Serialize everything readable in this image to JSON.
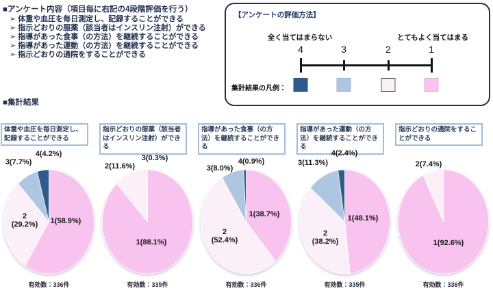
{
  "colors": {
    "slice_1_pink": "#F8C3EF",
    "slice_2_pale_pink": "#FCF0F8",
    "slice_3_light_blue": "#AEC6E2",
    "slice_4_dark_blue": "#2F5A8C",
    "legend_pale_outline": "#595959",
    "navy_text": "#1F3864"
  },
  "survey_content": {
    "heading": "■アンケート内容（項目毎に右記の4段階評価を行う）",
    "bullet": "➢",
    "items": [
      "体重や血圧を毎日測定し、記録することができる",
      "指示どおりの服薬（該当者はインスリン注射）ができる",
      "指導があった食事（の方法）を継続することができる",
      "指導があった運動（の方法）を継続することができる",
      "指示どおりの通院をすることができる"
    ]
  },
  "results_heading": "■集計結果",
  "evaluation_box": {
    "title": "【アンケートの評価方法】",
    "left_scale_label": "全く当てはまらない",
    "right_scale_label": "とてもよく当てはまる",
    "scale_numbers": [
      "4",
      "3",
      "2",
      "1"
    ],
    "legend_label": "集計結果の凡例：",
    "legend_keys": [
      "4",
      "3",
      "2",
      "1"
    ]
  },
  "chart_data": [
    {
      "type": "pie",
      "title": "体重や血圧を毎日測定し、記録することができる",
      "slices": [
        {
          "label": "1",
          "value": 58.9,
          "display": "1(58.9%)"
        },
        {
          "label": "2",
          "value": 29.2,
          "display": "2\n(29.2%)"
        },
        {
          "label": "3",
          "value": 7.7,
          "display": "3(7.7%)"
        },
        {
          "label": "4",
          "value": 4.2,
          "display": "4(4.2%)"
        }
      ],
      "valid_label": "有効数：336件"
    },
    {
      "type": "pie",
      "title": "指示どおりの服薬（該当者はインスリン注射）ができる",
      "slices": [
        {
          "label": "1",
          "value": 88.1,
          "display": "1(88.1%)"
        },
        {
          "label": "2",
          "value": 11.6,
          "display": "2(11.6%)"
        },
        {
          "label": "3",
          "value": 0.3,
          "display": "3(0.3%)"
        }
      ],
      "valid_label": "有効数：335件"
    },
    {
      "type": "pie",
      "title": "指導があった食事（の方法）を継続することができる",
      "slices": [
        {
          "label": "1",
          "value": 38.7,
          "display": "1(38.7%)"
        },
        {
          "label": "2",
          "value": 52.4,
          "display": "2\n(52.4%)"
        },
        {
          "label": "3",
          "value": 8.0,
          "display": "3(8.0%)"
        },
        {
          "label": "4",
          "value": 0.9,
          "display": "4(0.9%)"
        }
      ],
      "valid_label": "有効数：336件"
    },
    {
      "type": "pie",
      "title": "指導があった運動（の方法）を継続することができる",
      "slices": [
        {
          "label": "1",
          "value": 48.1,
          "display": "1(48.1%)"
        },
        {
          "label": "2",
          "value": 38.2,
          "display": "2\n(38.2%)"
        },
        {
          "label": "3",
          "value": 11.3,
          "display": "3(11.3%)"
        },
        {
          "label": "4",
          "value": 2.4,
          "display": "4(2.4%)"
        }
      ],
      "valid_label": "有効数：335件"
    },
    {
      "type": "pie",
      "title": "指示どおりの通院をすることができる",
      "slices": [
        {
          "label": "1",
          "value": 92.6,
          "display": "1(92.6%)"
        },
        {
          "label": "2",
          "value": 7.4,
          "display": "2(7.4%)"
        }
      ],
      "valid_label": "有効数：336件"
    }
  ]
}
